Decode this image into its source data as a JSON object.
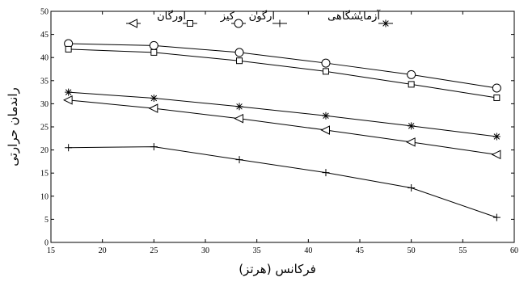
{
  "chart_data": {
    "type": "line",
    "title": "",
    "xlabel": "فرکانس (هرتز)",
    "ylabel": "راندمان حرارتی",
    "xlim": [
      15,
      60
    ],
    "ylim": [
      0,
      50
    ],
    "xticks": [
      15,
      20,
      25,
      30,
      35,
      40,
      45,
      50,
      55,
      60
    ],
    "yticks": [
      0,
      5,
      10,
      15,
      20,
      25,
      30,
      35,
      40,
      45,
      50
    ],
    "grid": false,
    "legend_position": "top",
    "x": [
      16.7,
      25,
      33.3,
      41.7,
      50,
      58.3
    ],
    "series": [
      {
        "name": "آزمایشگاهی",
        "marker": "asterisk",
        "values": [
          32.5,
          31.2,
          29.4,
          27.4,
          25.2,
          22.9
        ]
      },
      {
        "name": "ارگون",
        "marker": "plus",
        "values": [
          20.5,
          20.7,
          17.9,
          15.1,
          11.8,
          5.4
        ]
      },
      {
        "name": "کیز",
        "marker": "circle",
        "values": [
          43.0,
          42.6,
          41.1,
          38.8,
          36.3,
          33.4
        ]
      },
      {
        "name": "اورگان",
        "marker": "square",
        "values": [
          41.8,
          41.1,
          39.3,
          37.0,
          34.2,
          31.3
        ]
      },
      {
        "name": "",
        "marker": "triangle-left",
        "values": [
          30.8,
          29.0,
          26.8,
          24.3,
          21.7,
          19.0
        ]
      }
    ],
    "legend": [
      {
        "label": "آزمایشگاهی",
        "marker": "asterisk"
      },
      {
        "label": "ارگون",
        "marker": "plus"
      },
      {
        "label": "کیز",
        "marker": "circle"
      },
      {
        "label": "اورگان",
        "marker": "square"
      },
      {
        "label": "",
        "marker": "triangle-left"
      }
    ]
  }
}
